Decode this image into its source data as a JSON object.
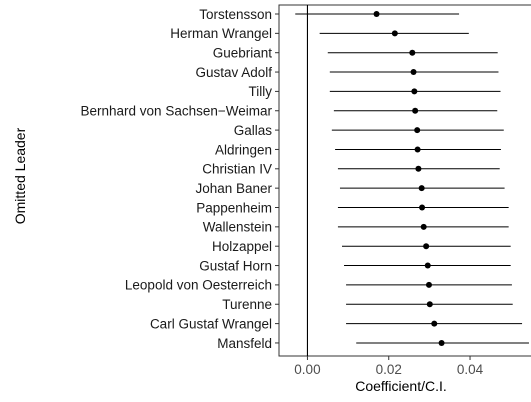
{
  "chart_data": {
    "type": "scatter",
    "subtype": "dot-and-whisker (point estimate with confidence interval)",
    "xlabel": "Coefficient/C.I.",
    "ylabel": "Omitted Leader",
    "xlim": [
      -0.007,
      0.055
    ],
    "xticks": [
      0.0,
      0.02,
      0.04
    ],
    "xtick_labels": [
      "0.00",
      "0.02",
      "0.04"
    ],
    "reference_line_x": 0.0,
    "grid": false,
    "legend": "none",
    "point_color": "#000000",
    "line_color": "#000000",
    "leaders": [
      {
        "name": "Torstensson",
        "estimate": 0.017,
        "ci_low": -0.003,
        "ci_high": 0.0373
      },
      {
        "name": "Herman Wrangel",
        "estimate": 0.0215,
        "ci_low": 0.003,
        "ci_high": 0.0397
      },
      {
        "name": "Guebriant",
        "estimate": 0.0258,
        "ci_low": 0.005,
        "ci_high": 0.0468
      },
      {
        "name": "Gustav Adolf",
        "estimate": 0.0261,
        "ci_low": 0.0055,
        "ci_high": 0.047
      },
      {
        "name": "Tilly",
        "estimate": 0.0263,
        "ci_low": 0.0055,
        "ci_high": 0.0475
      },
      {
        "name": "Bernhard von Sachsen−Weimar",
        "estimate": 0.0265,
        "ci_low": 0.0065,
        "ci_high": 0.0467
      },
      {
        "name": "Gallas",
        "estimate": 0.027,
        "ci_low": 0.006,
        "ci_high": 0.0483
      },
      {
        "name": "Aldringen",
        "estimate": 0.0271,
        "ci_low": 0.0068,
        "ci_high": 0.0476
      },
      {
        "name": "Christian IV",
        "estimate": 0.0273,
        "ci_low": 0.0075,
        "ci_high": 0.0473
      },
      {
        "name": "Johan Baner",
        "estimate": 0.0281,
        "ci_low": 0.008,
        "ci_high": 0.0485
      },
      {
        "name": "Pappenheim",
        "estimate": 0.0282,
        "ci_low": 0.0075,
        "ci_high": 0.0495
      },
      {
        "name": "Wallenstein",
        "estimate": 0.0286,
        "ci_low": 0.0075,
        "ci_high": 0.0495
      },
      {
        "name": "Holzappel",
        "estimate": 0.0292,
        "ci_low": 0.0085,
        "ci_high": 0.05
      },
      {
        "name": "Gustaf Horn",
        "estimate": 0.0296,
        "ci_low": 0.009,
        "ci_high": 0.05
      },
      {
        "name": "Leopold von Oesterreich",
        "estimate": 0.0299,
        "ci_low": 0.0095,
        "ci_high": 0.0503
      },
      {
        "name": "Turenne",
        "estimate": 0.0301,
        "ci_low": 0.0095,
        "ci_high": 0.0505
      },
      {
        "name": "Carl Gustaf Wrangel",
        "estimate": 0.0312,
        "ci_low": 0.0095,
        "ci_high": 0.0528
      },
      {
        "name": "Mansfeld",
        "estimate": 0.033,
        "ci_low": 0.012,
        "ci_high": 0.0545
      }
    ]
  }
}
